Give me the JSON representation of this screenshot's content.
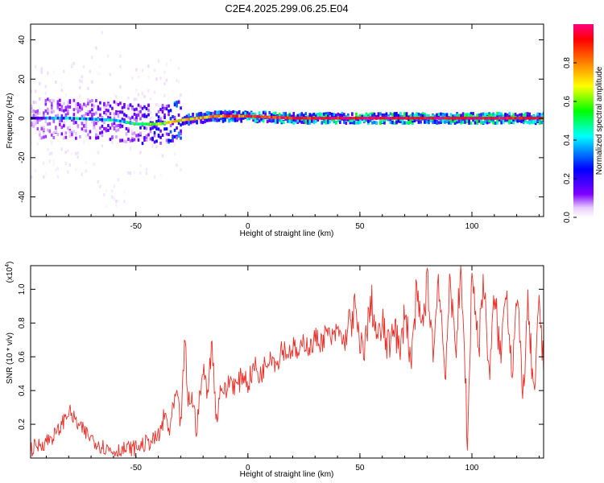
{
  "figure": {
    "title": "C2E4.2025.299.06.25.E04"
  },
  "chart_data": [
    {
      "type": "heatmap",
      "title": "C2E4.2025.299.06.25.E04",
      "xlabel": "Height of straight line (km)",
      "ylabel": "Frequency (Hz)",
      "xlim": [
        -97,
        132
      ],
      "ylim": [
        -50,
        48
      ],
      "xticks": [
        -50,
        0,
        50,
        100
      ],
      "yticks": [
        -40,
        -20,
        0,
        20,
        40
      ],
      "grid": false,
      "colorbar": {
        "label": "Normalized spectral amplitude",
        "range": [
          0.0,
          1.0
        ],
        "ticks": [
          0.0,
          0.2,
          0.4,
          0.6,
          0.8
        ],
        "colormap": [
          "#ffffff",
          "#e6ccff",
          "#8000ff",
          "#0000ff",
          "#00ffff",
          "#00ff00",
          "#ffff00",
          "#ff8000",
          "#ff0000",
          "#ff0080"
        ]
      },
      "ridge": [
        {
          "x": -97,
          "freq": 0,
          "amp": 0.3
        },
        {
          "x": -80,
          "freq": 0,
          "amp": 0.4
        },
        {
          "x": -60,
          "freq": -1,
          "amp": 0.45
        },
        {
          "x": -50,
          "freq": -3,
          "amp": 0.5
        },
        {
          "x": -40,
          "freq": -3,
          "amp": 0.6
        },
        {
          "x": -30,
          "freq": -1,
          "amp": 0.7
        },
        {
          "x": -15,
          "freq": 1,
          "amp": 0.75
        },
        {
          "x": 0,
          "freq": 1,
          "amp": 0.85
        },
        {
          "x": 20,
          "freq": 0,
          "amp": 0.9
        },
        {
          "x": 60,
          "freq": 0,
          "amp": 0.95
        },
        {
          "x": 100,
          "freq": 0,
          "amp": 0.95
        },
        {
          "x": 132,
          "freq": 0,
          "amp": 0.9
        }
      ]
    },
    {
      "type": "line",
      "xlabel": "Height of straight line (km)",
      "ylabel": "SNR (10 * v/v)",
      "y_multiplier_label": "(x10",
      "y_multiplier_exp": "4",
      "xlim": [
        -97,
        132
      ],
      "ylim": [
        0,
        1.14
      ],
      "xticks": [
        -50,
        0,
        50,
        100
      ],
      "yticks": [
        0.2,
        0.4,
        0.6,
        0.8,
        1.0
      ],
      "grid": false,
      "series": [
        {
          "color": "#e8302a",
          "x": [
            -97,
            -90,
            -85,
            -80,
            -75,
            -70,
            -65,
            -60,
            -55,
            -50,
            -45,
            -40,
            -37,
            -35,
            -32,
            -30,
            -28,
            -27,
            -25,
            -23,
            -20,
            -18,
            -16,
            -14,
            -12,
            -10,
            -8,
            -5,
            -2,
            0,
            3,
            5,
            8,
            10,
            13,
            15,
            18,
            20,
            23,
            25,
            28,
            30,
            33,
            35,
            38,
            40,
            43,
            45,
            48,
            50,
            53,
            55,
            58,
            60,
            63,
            65,
            68,
            70,
            73,
            75,
            78,
            80,
            83,
            85,
            88,
            90,
            93,
            95,
            97,
            98,
            100,
            103,
            105,
            108,
            110,
            113,
            115,
            118,
            120,
            123,
            125,
            128,
            130,
            132
          ],
          "values": [
            0.05,
            0.1,
            0.15,
            0.28,
            0.18,
            0.12,
            0.07,
            0.04,
            0.05,
            0.06,
            0.09,
            0.12,
            0.25,
            0.16,
            0.38,
            0.2,
            0.72,
            0.34,
            0.36,
            0.18,
            0.52,
            0.4,
            0.68,
            0.22,
            0.44,
            0.38,
            0.47,
            0.42,
            0.5,
            0.44,
            0.55,
            0.48,
            0.56,
            0.63,
            0.55,
            0.66,
            0.62,
            0.66,
            0.6,
            0.7,
            0.65,
            0.71,
            0.69,
            0.74,
            0.7,
            0.76,
            0.68,
            0.78,
            0.88,
            0.62,
            0.72,
            0.94,
            0.68,
            0.79,
            0.63,
            0.85,
            0.58,
            0.9,
            0.55,
            0.94,
            0.77,
            1.05,
            0.62,
            1.1,
            0.5,
            0.98,
            0.7,
            1.08,
            0.55,
            0.03,
            1.13,
            0.64,
            1.07,
            0.48,
            0.96,
            0.58,
            1.06,
            0.52,
            0.93,
            0.4,
            0.88,
            0.3,
            0.98,
            0.5
          ]
        }
      ]
    }
  ]
}
